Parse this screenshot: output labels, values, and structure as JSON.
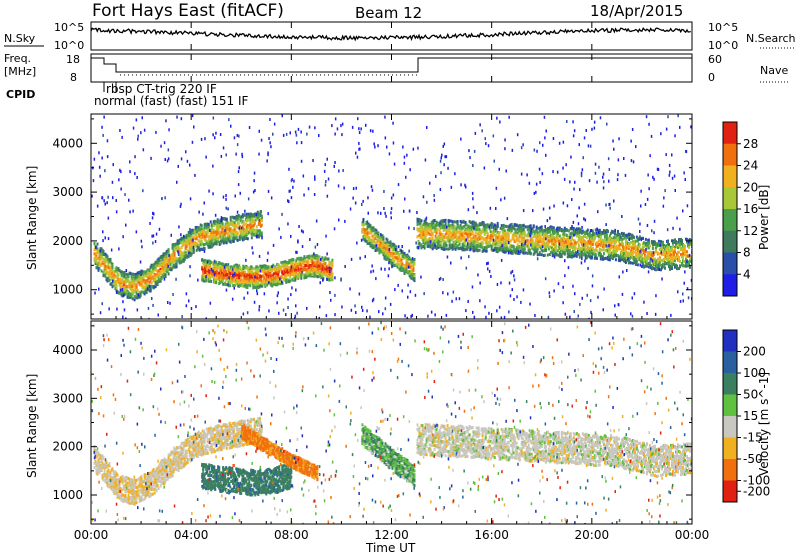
{
  "header": {
    "title": "Fort Hays East (fitACF)",
    "beam": "Beam 12",
    "date": "18/Apr/2015"
  },
  "left_labels": {
    "nsky": "N.Sky",
    "freq": "Freq.",
    "mhz": "[MHz]",
    "cpid": "CPID"
  },
  "right_labels": {
    "nsearch": "N.Search",
    "nave": "Nave"
  },
  "noise_axis": {
    "left_ticks": [
      "10^5",
      "10^0"
    ],
    "right_ticks": [
      "10^5",
      "10^0"
    ]
  },
  "freq_axis": {
    "left_ticks": [
      "18",
      "8"
    ],
    "right_ticks": [
      "60",
      "0"
    ]
  },
  "cpid_labels": [
    "rbsp CT-trig 220 IF",
    "normal (fast) (fast) 151 IF"
  ],
  "x_axis": {
    "label": "Time UT",
    "ticks": [
      "00:00",
      "04:00",
      "08:00",
      "12:00",
      "16:00",
      "20:00",
      "00:00"
    ]
  },
  "y_axis": {
    "label": "Slant Range [km]",
    "ticks": [
      "1000",
      "2000",
      "3000",
      "4000"
    ]
  },
  "power_colorbar": {
    "label": "Power [dB]",
    "ticks": [
      "4",
      "8",
      "12",
      "16",
      "20",
      "24",
      "28"
    ],
    "colors": [
      "#1e1ee6",
      "#2a4fa8",
      "#3d7a5e",
      "#4aa04a",
      "#a8c83a",
      "#f0b020",
      "#f07010",
      "#e02010"
    ]
  },
  "velocity_colorbar": {
    "label": "Velocity [m s^-1]",
    "ticks": [
      "200",
      "100",
      "50",
      "15",
      "-15",
      "-50",
      "-100",
      "-200"
    ],
    "colors": [
      "#2030c0",
      "#2860a0",
      "#3a8060",
      "#60c040",
      "#c8c8c0",
      "#f0b020",
      "#f07010",
      "#e02010"
    ]
  },
  "chart_data": [
    {
      "type": "heatmap",
      "name_hint": "power",
      "xlabel": "Time UT",
      "ylabel": "Slant Range [km]",
      "xlim": [
        0,
        24
      ],
      "ylim": [
        400,
        4600
      ],
      "zlabel": "Power [dB]",
      "zlim": [
        0,
        32
      ],
      "features": [
        {
          "t0": 0.1,
          "t1": 6.8,
          "r": [
            1750,
            1450,
            1150,
            1050,
            1250,
            1700,
            2050,
            2200,
            2350
          ],
          "t": [
            0.1,
            0.6,
            1.1,
            1.7,
            2.4,
            3.3,
            4.2,
            5.2,
            6.8
          ],
          "power": 18,
          "width": 260
        },
        {
          "t0": 4.4,
          "t1": 9.6,
          "r": [
            1400,
            1300,
            1250,
            1300,
            1400,
            1500,
            1400
          ],
          "t": [
            4.4,
            5.5,
            6.5,
            7.3,
            8.0,
            8.8,
            9.6
          ],
          "power": 22,
          "width": 220
        },
        {
          "t0": 10.8,
          "t1": 12.9,
          "r": [
            2250,
            1900,
            1600,
            1400
          ],
          "t": [
            10.8,
            11.6,
            12.3,
            12.9
          ],
          "power": 18,
          "width": 220
        },
        {
          "t0": 13.0,
          "t1": 24.0,
          "r": [
            2150,
            2100,
            2050,
            2000,
            1950,
            1900,
            1700,
            1750
          ],
          "t": [
            13.0,
            15.0,
            16.5,
            18.0,
            19.5,
            21.0,
            22.5,
            24.0
          ],
          "power": 17,
          "width": 300
        }
      ]
    },
    {
      "type": "heatmap",
      "name_hint": "velocity",
      "xlabel": "Time UT",
      "ylabel": "Slant Range [km]",
      "xlim": [
        0,
        24
      ],
      "ylim": [
        400,
        4600
      ],
      "zlabel": "Velocity [m s^-1]",
      "zlim": [
        -250,
        250
      ],
      "features": [
        {
          "t0": 0.1,
          "t1": 6.8,
          "r": [
            1750,
            1450,
            1150,
            1050,
            1250,
            1700,
            2050,
            2200,
            2350
          ],
          "t": [
            0.1,
            0.6,
            1.1,
            1.7,
            2.4,
            3.3,
            4.2,
            5.2,
            6.8
          ],
          "velocity": -10,
          "width": 260
        },
        {
          "t0": 4.4,
          "t1": 8.0,
          "r": [
            1400,
            1300,
            1250,
            1300,
            1400
          ],
          "t": [
            4.4,
            5.5,
            6.5,
            7.3,
            8.0
          ],
          "velocity": 60,
          "width": 260
        },
        {
          "t0": 6.0,
          "t1": 9.0,
          "r": [
            2300,
            2000,
            1700,
            1450
          ],
          "t": [
            6.0,
            7.0,
            8.0,
            9.0
          ],
          "velocity": -60,
          "width": 140
        },
        {
          "t0": 10.8,
          "t1": 12.9,
          "r": [
            2250,
            1900,
            1600,
            1400
          ],
          "t": [
            10.8,
            11.6,
            12.3,
            12.9
          ],
          "velocity": 30,
          "width": 220
        },
        {
          "t0": 13.0,
          "t1": 24.0,
          "r": [
            2150,
            2100,
            2050,
            2000,
            1950,
            1900,
            1700,
            1750
          ],
          "t": [
            13.0,
            15.0,
            16.5,
            18.0,
            19.5,
            21.0,
            22.5,
            24.0
          ],
          "velocity": 0,
          "width": 320
        }
      ]
    }
  ]
}
